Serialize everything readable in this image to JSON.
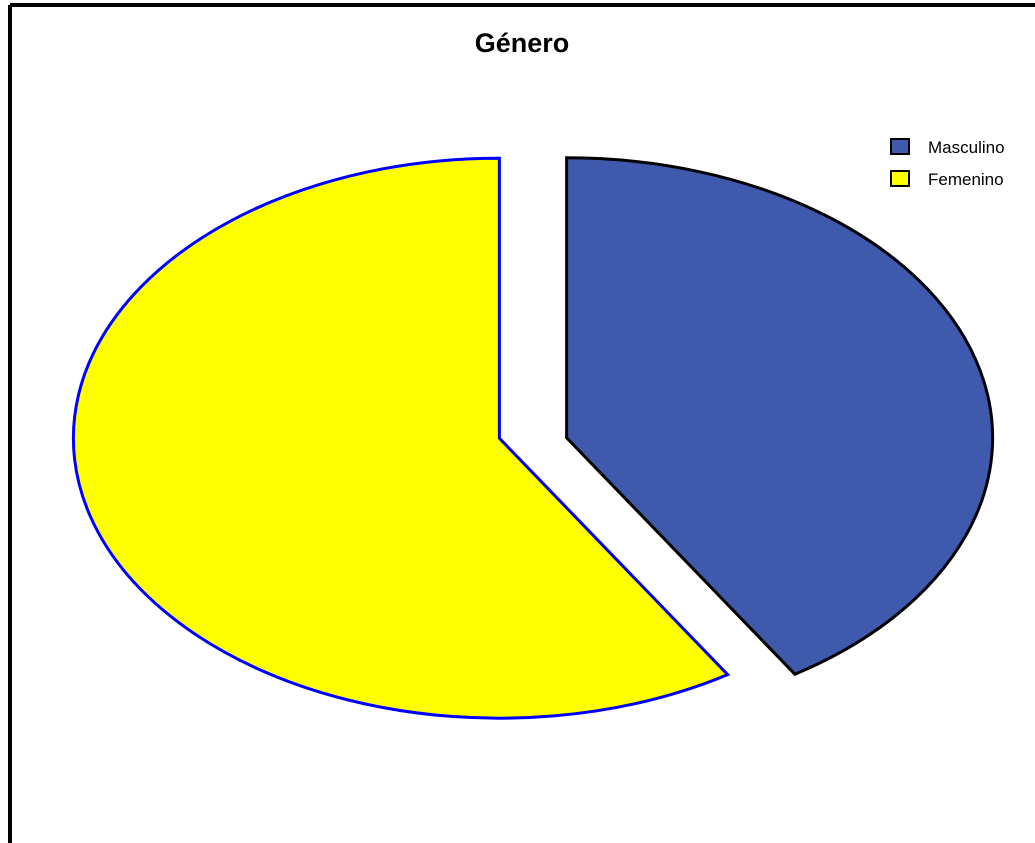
{
  "chart_data": {
    "type": "pie",
    "title": "Género",
    "categories": [
      "Masculino",
      "Femenino"
    ],
    "values": [
      41,
      59
    ],
    "colors": [
      "#3f5aac",
      "#ffff00"
    ],
    "outline_colors": [
      "#000000",
      "#0000ff"
    ],
    "exploded": [
      true,
      true
    ],
    "legend_position": "top-right",
    "legend": [
      {
        "label": "Masculino",
        "color": "#3f5aac"
      },
      {
        "label": "Femenino",
        "color": "#ffff00"
      }
    ]
  }
}
